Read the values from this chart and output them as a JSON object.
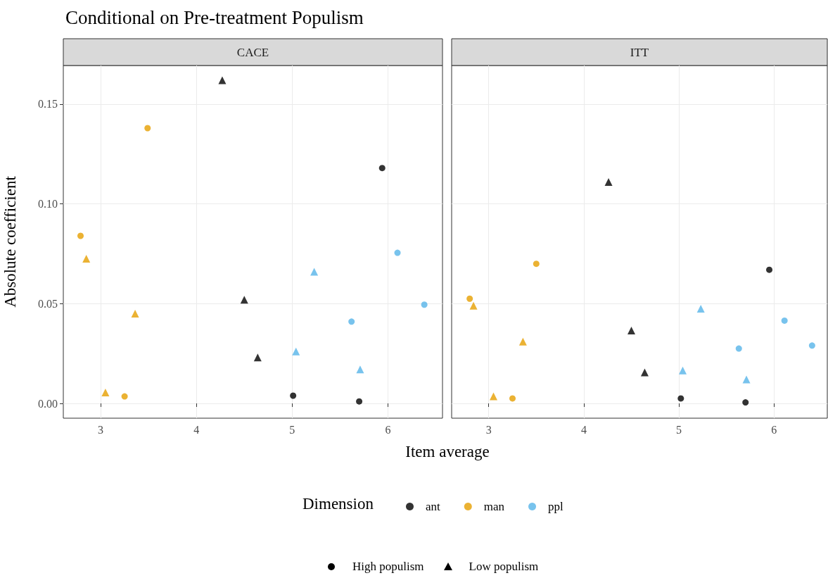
{
  "chart_data": [
    {
      "type": "scatter",
      "title": "Conditional on Pre-treatment Populism",
      "subtitle": "CACE",
      "xlabel": "Item average",
      "ylabel": "Absolute coefficient",
      "legend_title": "Dimension",
      "legend": "bottom",
      "grid": true,
      "annotations": [
        "High populism",
        "Low populism"
      ],
      "xlim": [
        2.61,
        6.57
      ],
      "xticks": [
        3,
        4,
        5,
        6
      ],
      "ylim": [
        -0.0074,
        0.1694
      ],
      "yticks": [
        {
          "value": 0,
          "label": "0.00"
        },
        {
          "value": 0.05,
          "label": "0.05"
        },
        {
          "value": 0.1,
          "label": "0.10"
        },
        {
          "value": 0.15,
          "label": "0.15"
        }
      ],
      "series": [
        {
          "name": "ant",
          "color": "#000000",
          "marker": "circle",
          "x": [
            5.01,
            5.7,
            5.94
          ],
          "values": [
            0.0039,
            0.001,
            0.118
          ]
        },
        {
          "name": "man",
          "color": "#e69f00",
          "marker": "circle",
          "x": [
            2.79,
            3.49,
            3.25
          ],
          "values": [
            0.084,
            0.138,
            0.0035
          ]
        },
        {
          "name": "ppl",
          "color": "#56b4e9",
          "marker": "circle",
          "x": [
            5.62,
            6.1,
            6.38
          ],
          "values": [
            0.041,
            0.0755,
            0.0495
          ]
        },
        {
          "color": "#000000",
          "marker": "triangle",
          "x": [
            4.27,
            4.5,
            4.64
          ],
          "values": [
            0.162,
            0.052,
            0.023
          ]
        },
        {
          "color": "#e69f00",
          "marker": "triangle",
          "x": [
            2.85,
            3.05,
            3.36
          ],
          "values": [
            0.0725,
            0.0055,
            0.045
          ]
        },
        {
          "color": "#56b4e9",
          "marker": "triangle",
          "x": [
            5.04,
            5.23,
            5.71
          ],
          "values": [
            0.026,
            0.066,
            0.017
          ]
        }
      ]
    },
    {
      "type": "scatter",
      "subtitle": "ITT",
      "grid": true,
      "tick_labels": "x",
      "xlim": [
        2.61,
        6.56
      ],
      "xticks": [
        3,
        4,
        5,
        6
      ],
      "ylim": [
        -0.0074,
        0.1694
      ],
      "yticks": [
        0,
        0.05,
        0.1,
        0.15
      ],
      "series": [
        {
          "color": "#000000",
          "marker": "circle",
          "x": [
            5.02,
            5.7,
            5.95
          ],
          "values": [
            0.0025,
            0.0005,
            0.067
          ]
        },
        {
          "color": "#e69f00",
          "marker": "circle",
          "x": [
            2.8,
            3.5,
            3.25
          ],
          "values": [
            0.0525,
            0.07,
            0.0025
          ]
        },
        {
          "color": "#56b4e9",
          "marker": "circle",
          "x": [
            5.63,
            6.11,
            6.4
          ],
          "values": [
            0.0275,
            0.0415,
            0.029
          ]
        },
        {
          "color": "#000000",
          "marker": "triangle",
          "x": [
            4.26,
            4.5,
            4.64
          ],
          "values": [
            0.111,
            0.0365,
            0.0155
          ]
        },
        {
          "color": "#e69f00",
          "marker": "triangle",
          "x": [
            2.84,
            3.05,
            3.36
          ],
          "values": [
            0.049,
            0.0035,
            0.031
          ]
        },
        {
          "color": "#56b4e9",
          "marker": "triangle",
          "x": [
            5.04,
            5.23,
            5.71
          ],
          "values": [
            0.0165,
            0.0475,
            0.012
          ]
        }
      ]
    }
  ]
}
